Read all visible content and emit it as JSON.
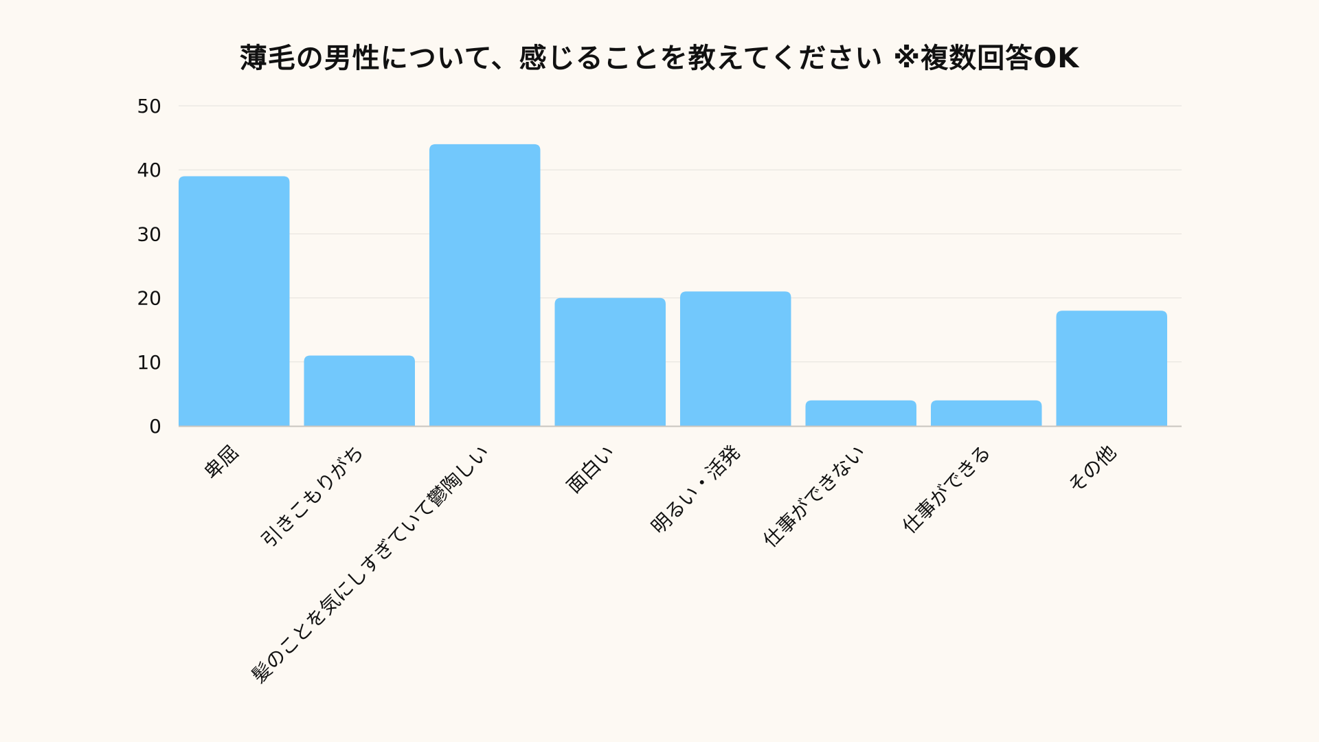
{
  "chart_data": {
    "type": "bar",
    "title": "薄毛の男性について、感じることを教えてください ※複数回答OK",
    "categories": [
      "卑屈",
      "引きこもりがち",
      "髪のことを気にしすぎていて鬱陶しい",
      "面白い",
      "明るい・活発",
      "仕事ができない",
      "仕事ができる",
      "その他"
    ],
    "values": [
      39,
      11,
      44,
      20,
      21,
      4,
      4,
      18
    ],
    "xlabel": "",
    "ylabel": "",
    "ylim": [
      0,
      50
    ],
    "yticks": [
      0,
      10,
      20,
      30,
      40,
      50
    ],
    "grid": true,
    "legend": "none",
    "colors": {
      "bar": "#72c8fc",
      "grid": "#e4e1dc",
      "axis": "#c9c5bf",
      "background": "#fdf9f3",
      "text": "#111111"
    }
  }
}
